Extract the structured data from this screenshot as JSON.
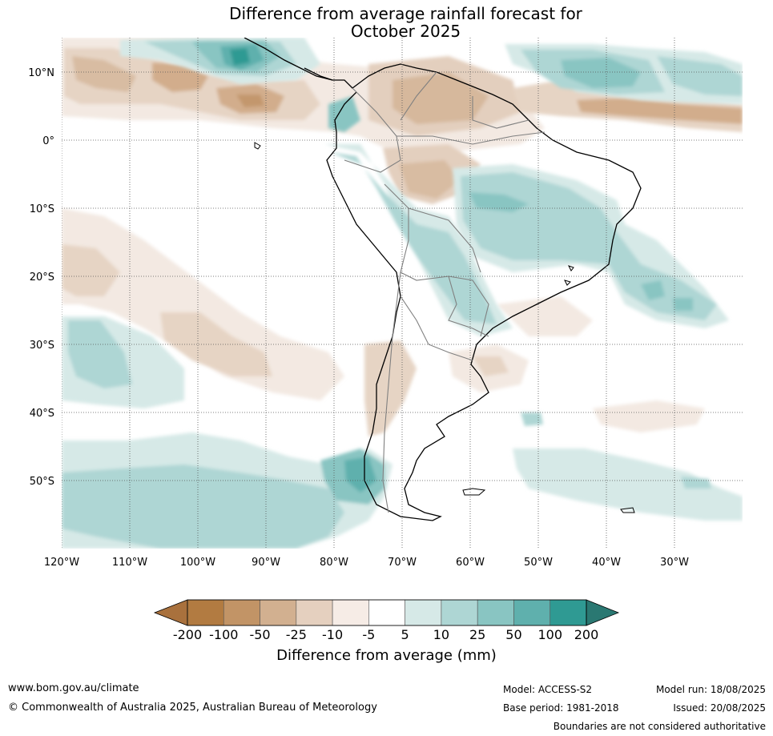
{
  "title_line1": "Difference from average rainfall forecast for",
  "title_line2": "October 2025",
  "lat_labels": [
    "10°N",
    "0°",
    "10°S",
    "20°S",
    "30°S",
    "40°S",
    "50°S"
  ],
  "lon_labels": [
    "120°W",
    "110°W",
    "100°W",
    "90°W",
    "80°W",
    "70°W",
    "60°W",
    "50°W",
    "40°W",
    "30°W"
  ],
  "legend": {
    "tick_labels": [
      "-200",
      "-100",
      "-50",
      "-25",
      "-10",
      "-5",
      "5",
      "10",
      "25",
      "50",
      "100",
      "200"
    ],
    "colors": [
      "#a9713d",
      "#b27b41",
      "#c29466",
      "#d2b090",
      "#e5d0bf",
      "#f6ece6",
      "#ffffff",
      "#d6e9e7",
      "#aed6d4",
      "#89c5c2",
      "#5fb0ad",
      "#2f9a93",
      "#2a7872"
    ],
    "label": "Difference from average (mm)"
  },
  "footer": {
    "website": "www.bom.gov.au/climate",
    "copyright": "© Commonwealth of Australia 2025, Australian Bureau of Meteorology",
    "model": "Model: ACCESS-S2",
    "base_period": "Base period: 1981-2018",
    "model_run": "Model run: 18/08/2025",
    "issued": "Issued: 20/08/2025",
    "disclaimer": "Boundaries are not considered authoritative"
  }
}
